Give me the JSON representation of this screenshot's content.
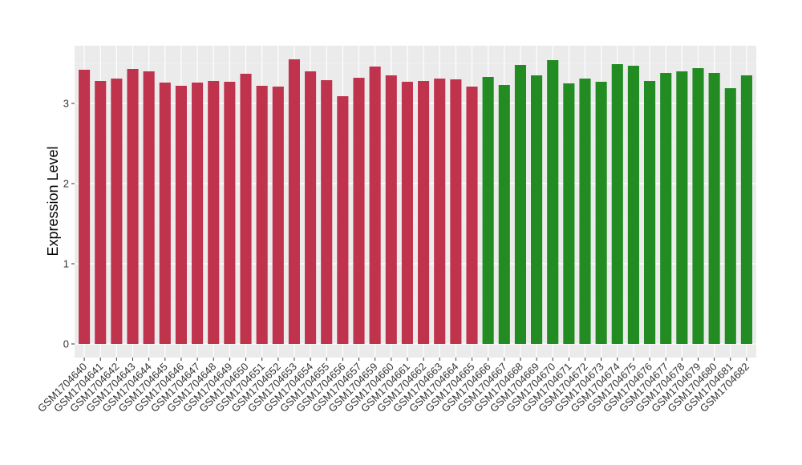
{
  "chart_data": {
    "type": "bar",
    "ylabel": "Expression Level",
    "categories": [
      "GSM1704640",
      "GSM1704641",
      "GSM1704642",
      "GSM1704643",
      "GSM1704644",
      "GSM1704645",
      "GSM1704646",
      "GSM1704647",
      "GSM1704648",
      "GSM1704649",
      "GSM1704650",
      "GSM1704651",
      "GSM1704652",
      "GSM1704653",
      "GSM1704654",
      "GSM1704655",
      "GSM1704656",
      "GSM1704657",
      "GSM1704659",
      "GSM1704660",
      "GSM1704661",
      "GSM1704662",
      "GSM1704663",
      "GSM1704664",
      "GSM1704665",
      "GSM1704666",
      "GSM1704667",
      "GSM1704668",
      "GSM1704669",
      "GSM1704670",
      "GSM1704671",
      "GSM1704672",
      "GSM1704673",
      "GSM1704674",
      "GSM1704675",
      "GSM1704676",
      "GSM1704677",
      "GSM1704678",
      "GSM1704679",
      "GSM1704680",
      "GSM1704681",
      "GSM1704682"
    ],
    "values": [
      3.42,
      3.28,
      3.31,
      3.43,
      3.4,
      3.26,
      3.22,
      3.26,
      3.28,
      3.27,
      3.37,
      3.22,
      3.21,
      3.55,
      3.4,
      3.29,
      3.09,
      3.32,
      3.46,
      3.35,
      3.27,
      3.28,
      3.31,
      3.3,
      3.21,
      3.33,
      3.23,
      3.48,
      3.35,
      3.54,
      3.25,
      3.31,
      3.27,
      3.49,
      3.47,
      3.28,
      3.38,
      3.4,
      3.44,
      3.38,
      3.19,
      3.35
    ],
    "colors": [
      "#c0334d",
      "#c0334d",
      "#c0334d",
      "#c0334d",
      "#c0334d",
      "#c0334d",
      "#c0334d",
      "#c0334d",
      "#c0334d",
      "#c0334d",
      "#c0334d",
      "#c0334d",
      "#c0334d",
      "#c0334d",
      "#c0334d",
      "#c0334d",
      "#c0334d",
      "#c0334d",
      "#c0334d",
      "#c0334d",
      "#c0334d",
      "#c0334d",
      "#c0334d",
      "#c0334d",
      "#c0334d",
      "#228b22",
      "#228b22",
      "#228b22",
      "#228b22",
      "#228b22",
      "#228b22",
      "#228b22",
      "#228b22",
      "#228b22",
      "#228b22",
      "#228b22",
      "#228b22",
      "#228b22",
      "#228b22",
      "#228b22",
      "#228b22",
      "#228b22"
    ],
    "ylim": [
      -0.17,
      3.72
    ],
    "yticks": [
      0,
      1,
      2,
      3
    ],
    "grid": true
  }
}
